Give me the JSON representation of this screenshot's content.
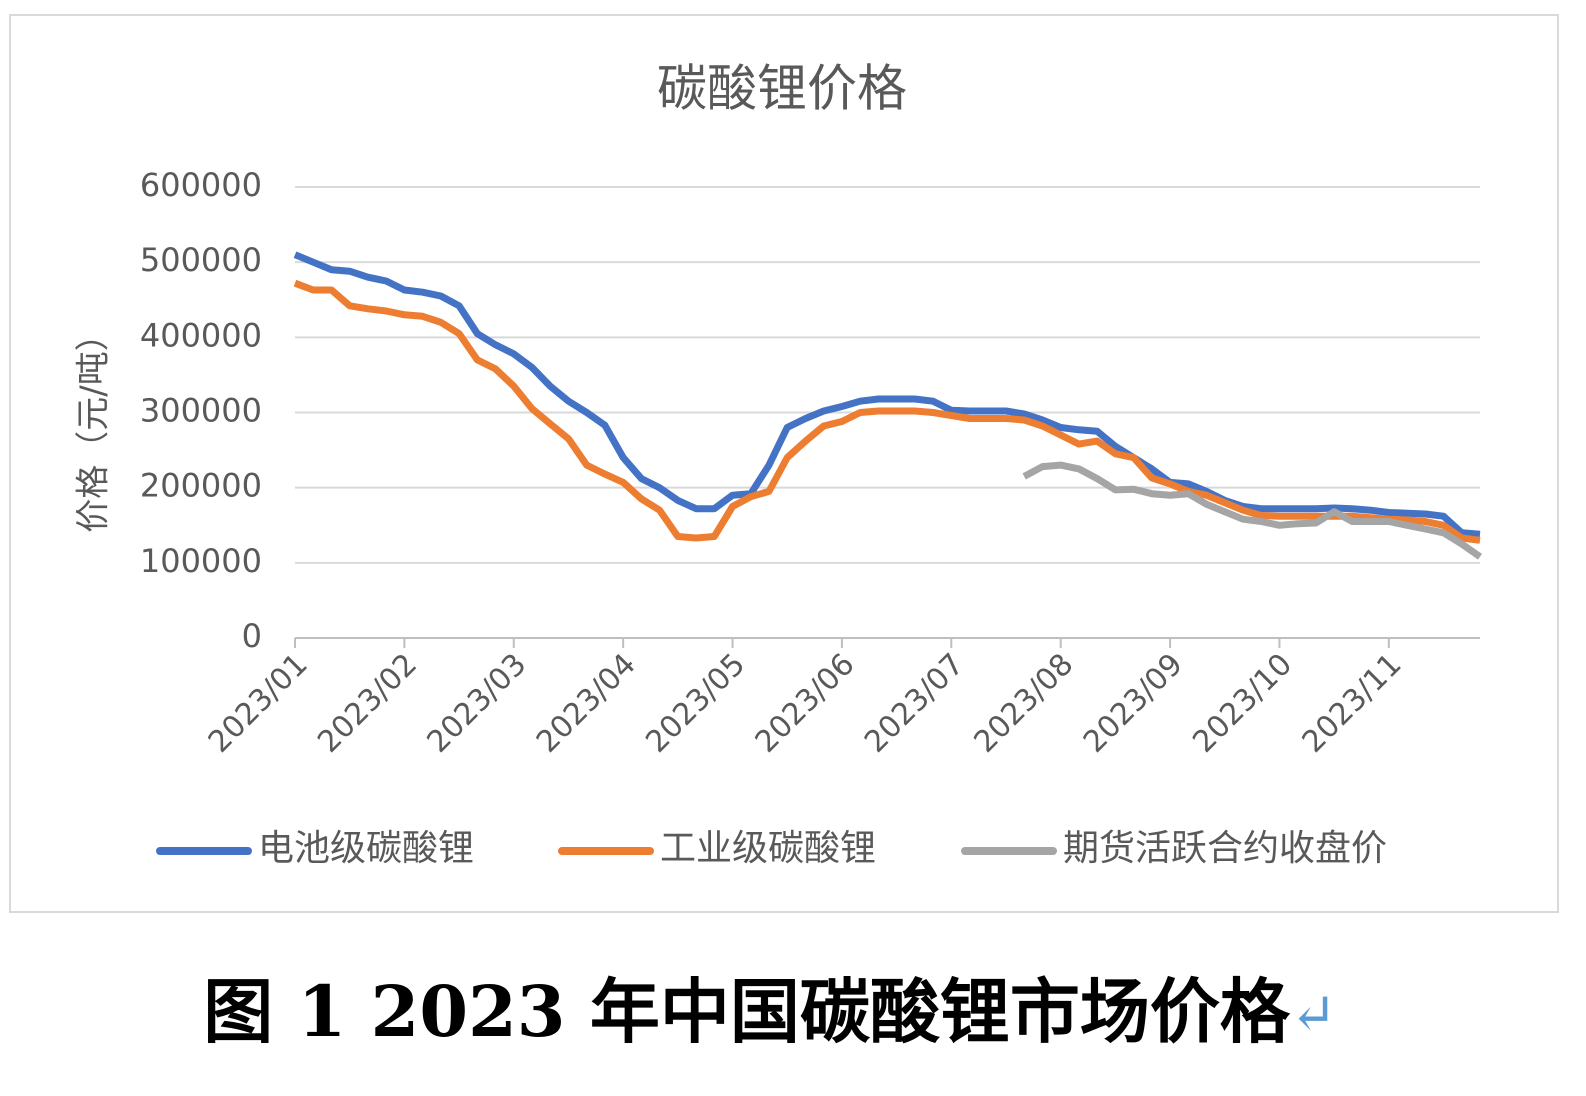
{
  "chart_data": {
    "type": "line",
    "title": "碳酸锂价格",
    "y_label": "价格（元/吨）",
    "categories": [
      "2023/01",
      null,
      null,
      null,
      null,
      null,
      "2023/02",
      null,
      null,
      null,
      null,
      null,
      "2023/03",
      null,
      null,
      null,
      null,
      null,
      "2023/04",
      null,
      null,
      null,
      null,
      null,
      "2023/05",
      null,
      null,
      null,
      null,
      null,
      "2023/06",
      null,
      null,
      null,
      null,
      null,
      "2023/07",
      null,
      null,
      null,
      null,
      null,
      "2023/08",
      null,
      null,
      null,
      null,
      null,
      "2023/09",
      null,
      null,
      null,
      null,
      null,
      "2023/10",
      null,
      null,
      null,
      null,
      null,
      "2023/11",
      null,
      null,
      null,
      null,
      null
    ],
    "series": [
      {
        "name": "电池级碳酸锂",
        "color": "#4472c4",
        "values": [
          510000,
          500000,
          490000,
          488000,
          480000,
          475000,
          463000,
          460000,
          455000,
          442000,
          405000,
          390000,
          378000,
          360000,
          335000,
          315000,
          300000,
          283000,
          240000,
          212000,
          200000,
          183000,
          172000,
          172000,
          190000,
          192000,
          230000,
          280000,
          292000,
          302000,
          308000,
          315000,
          318000,
          318000,
          318000,
          315000,
          303000,
          302000,
          302000,
          302000,
          298000,
          290000,
          280000,
          277000,
          275000,
          255000,
          240000,
          225000,
          207000,
          205000,
          195000,
          183000,
          175000,
          172000,
          172000,
          172000,
          172000,
          173000,
          172000,
          170000,
          167000,
          166000,
          165000,
          162000,
          140000,
          138000
        ]
      },
      {
        "name": "工业级碳酸锂",
        "color": "#ed7d31",
        "values": [
          472000,
          463000,
          463000,
          442000,
          438000,
          435000,
          430000,
          428000,
          420000,
          405000,
          370000,
          358000,
          335000,
          305000,
          285000,
          265000,
          230000,
          218000,
          207000,
          185000,
          170000,
          135000,
          133000,
          135000,
          175000,
          188000,
          195000,
          240000,
          262000,
          282000,
          288000,
          300000,
          302000,
          302000,
          302000,
          300000,
          296000,
          292000,
          292000,
          292000,
          290000,
          282000,
          270000,
          258000,
          262000,
          245000,
          240000,
          213000,
          205000,
          195000,
          190000,
          180000,
          170000,
          163000,
          162000,
          162000,
          162000,
          162000,
          162000,
          160000,
          158000,
          157000,
          155000,
          150000,
          133000,
          130000
        ]
      },
      {
        "name": "期货活跃合约收盘价",
        "color": "#a5a5a5",
        "values": [
          null,
          null,
          null,
          null,
          null,
          null,
          null,
          null,
          null,
          null,
          null,
          null,
          null,
          null,
          null,
          null,
          null,
          null,
          null,
          null,
          null,
          null,
          null,
          null,
          null,
          null,
          null,
          null,
          null,
          null,
          null,
          null,
          null,
          null,
          null,
          null,
          null,
          null,
          null,
          null,
          215000,
          228000,
          230000,
          225000,
          212000,
          197000,
          198000,
          192000,
          190000,
          192000,
          178000,
          168000,
          158000,
          155000,
          150000,
          152000,
          153000,
          168000,
          155000,
          155000,
          155000,
          150000,
          145000,
          140000,
          125000,
          108000
        ]
      }
    ],
    "ylim": [
      0,
      600000
    ],
    "yticks": [
      0,
      100000,
      200000,
      300000,
      400000,
      500000,
      600000
    ],
    "grid": true,
    "legend": "bottom"
  },
  "caption": "图 1 2023 年中国碳酸锂市场价格",
  "caption_mark": "↵"
}
